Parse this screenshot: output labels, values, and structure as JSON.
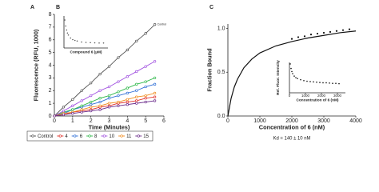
{
  "chart_data": [
    {
      "type": "line",
      "panel_label": "A",
      "xlabel": "Time (Minutes)",
      "ylabel": "Fluorescence (RFU, 1000)",
      "annotation": "Control",
      "x": [
        0,
        0.5,
        1,
        1.5,
        2,
        2.5,
        3,
        3.5,
        4,
        4.5,
        5,
        5.5
      ],
      "xlim": [
        0,
        6
      ],
      "xticks": [
        0,
        1,
        2,
        3,
        4,
        5,
        6
      ],
      "ylim": [
        0,
        8
      ],
      "yticks": [
        0,
        1,
        2,
        3,
        4,
        5,
        6,
        7,
        8
      ],
      "legend": "bottom",
      "series": [
        {
          "name": "Control",
          "color": "#555555",
          "values": [
            0,
            0.7,
            1.3,
            2.0,
            2.6,
            3.3,
            3.9,
            4.6,
            5.2,
            5.9,
            6.5,
            7.2
          ]
        },
        {
          "name": "4",
          "color": "#e0302a",
          "values": [
            0,
            0.1,
            0.3,
            0.4,
            0.5,
            0.7,
            0.8,
            1.0,
            1.1,
            1.2,
            1.4,
            1.5
          ]
        },
        {
          "name": "6",
          "color": "#2f6fd6",
          "values": [
            0,
            0.2,
            0.5,
            0.7,
            0.9,
            1.1,
            1.4,
            1.6,
            1.8,
            2.0,
            2.3,
            2.5
          ]
        },
        {
          "name": "8",
          "color": "#2fb84a",
          "values": [
            0,
            0.3,
            0.5,
            0.8,
            1.1,
            1.4,
            1.6,
            1.9,
            2.2,
            2.5,
            2.7,
            3.0
          ]
        },
        {
          "name": "10",
          "color": "#a050e0",
          "values": [
            0,
            0.4,
            0.8,
            1.2,
            1.6,
            2.0,
            2.3,
            2.7,
            3.1,
            3.5,
            3.9,
            4.3
          ]
        },
        {
          "name": "11",
          "color": "#f08c1e",
          "values": [
            0,
            0.2,
            0.3,
            0.5,
            0.7,
            0.8,
            1.0,
            1.1,
            1.3,
            1.5,
            1.6,
            1.8
          ]
        },
        {
          "name": "15",
          "color": "#6a2a8a",
          "values": [
            0,
            0.1,
            0.2,
            0.3,
            0.4,
            0.5,
            0.7,
            0.8,
            0.9,
            1.0,
            1.1,
            1.2
          ]
        }
      ]
    },
    {
      "type": "scatter",
      "panel_label": "B",
      "xlabel": "Compound 6 (µM)",
      "color": "#555555",
      "xlim": [
        0,
        100
      ],
      "ylim": [
        0,
        1.6
      ],
      "x": [
        2,
        4,
        6,
        8,
        10,
        15,
        20,
        25,
        30,
        40,
        50,
        60,
        70,
        80,
        90
      ],
      "values": [
        1.4,
        1.1,
        0.9,
        0.75,
        0.65,
        0.5,
        0.42,
        0.38,
        0.35,
        0.3,
        0.28,
        0.27,
        0.26,
        0.25,
        0.25
      ]
    },
    {
      "type": "scatter",
      "panel_label": "C",
      "xlabel": "Concentration of 6 (nM)",
      "ylabel": "Fraction Bound",
      "note": "Kd = 140 ± 10 nM",
      "color": "#111111",
      "xlim": [
        0,
        4000
      ],
      "xticks": [
        0,
        1000,
        2000,
        3000,
        4000
      ],
      "ylim": [
        0,
        1.05
      ],
      "yticks": [
        {
          "value": 0,
          "label": "0.0"
        },
        0.5,
        {
          "value": 1,
          "label": "1.0"
        }
      ],
      "x": [
        2000,
        2200,
        2400,
        2600,
        2800,
        3000,
        3200,
        3400,
        3600,
        3800
      ],
      "values": [
        0.88,
        0.9,
        0.91,
        0.93,
        0.94,
        0.95,
        0.96,
        0.97,
        0.98,
        0.99
      ],
      "fit": {
        "x": [
          0,
          100,
          200,
          300,
          500,
          750,
          1000,
          1500,
          2000,
          2500,
          3000,
          3500,
          4000
        ],
        "values": [
          0,
          0.2,
          0.33,
          0.42,
          0.55,
          0.65,
          0.72,
          0.8,
          0.85,
          0.89,
          0.92,
          0.95,
          0.97
        ]
      }
    },
    {
      "type": "scatter",
      "xlabel": "Concentration of 6 (nM)",
      "ylabel": "Rel. Fluor. Intensity",
      "color": "#111111",
      "xlim": [
        0,
        3500
      ],
      "xticks": [
        0,
        1000,
        2000,
        3000
      ],
      "ylim": [
        0,
        1
      ],
      "x": [
        50,
        100,
        150,
        200,
        300,
        400,
        500,
        700,
        900,
        1100,
        1300,
        1500,
        1700,
        1900,
        2100,
        2300,
        2500,
        2700,
        2900,
        3100
      ],
      "values": [
        0.95,
        0.8,
        0.7,
        0.63,
        0.55,
        0.5,
        0.47,
        0.43,
        0.4,
        0.38,
        0.37,
        0.36,
        0.35,
        0.34,
        0.33,
        0.33,
        0.32,
        0.31,
        0.31,
        0.3
      ]
    }
  ]
}
